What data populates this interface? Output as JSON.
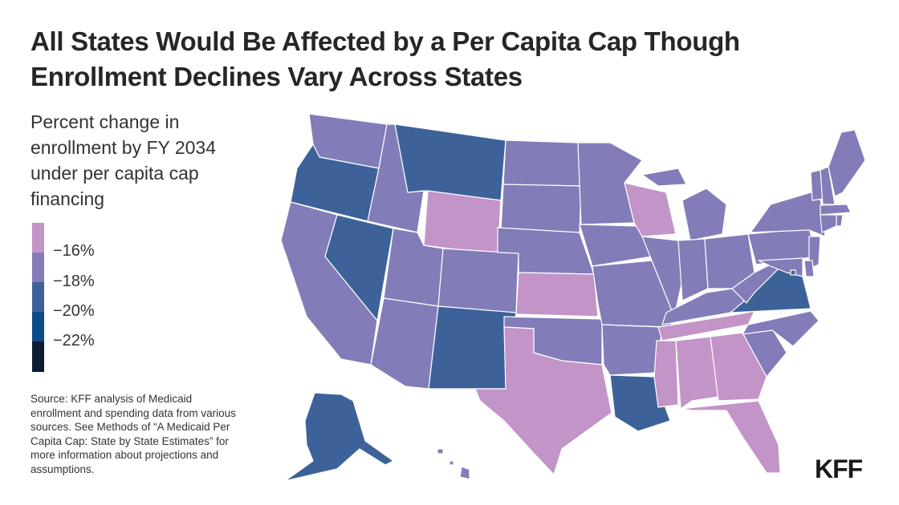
{
  "title": "All States Would Be Affected by a Per Capita Cap Though Enrollment Declines Vary Across States",
  "subtitle": "Percent change in enrollment by FY 2034 under per capita cap financing",
  "legend": {
    "bins": [
      {
        "label": "",
        "color": "#c394c7"
      },
      {
        "label": "−16%",
        "color": "#827db8"
      },
      {
        "label": "−18%",
        "color": "#3d6299"
      },
      {
        "label": "−20%",
        "color": "#0b4a88"
      },
      {
        "label": "−22%",
        "color": "#0b1c33"
      }
    ]
  },
  "source": "Source: KFF analysis of Medicaid enrollment and spending data from various sources. See Methods of “A Medicaid Per Capita Cap: State by State Estimates” for more information about projections and assumptions.",
  "logo": "KFF",
  "map_data": {
    "type": "choropleth",
    "value_bins": {
      "1": "least decline (pink)",
      "2": "middle (purple)",
      "3": "largest shown (blue)"
    },
    "states": {
      "WA": 2,
      "OR": 3,
      "CA": 2,
      "ID": 2,
      "NV": 3,
      "MT": 3,
      "WY": 1,
      "UT": 2,
      "AZ": 2,
      "CO": 2,
      "NM": 3,
      "ND": 2,
      "SD": 2,
      "NE": 2,
      "KS": 1,
      "OK": 2,
      "TX": 1,
      "MN": 2,
      "IA": 2,
      "MO": 2,
      "AR": 2,
      "LA": 3,
      "WI": 1,
      "IL": 2,
      "MI": 2,
      "IN": 2,
      "OH": 2,
      "KY": 2,
      "TN": 1,
      "MS": 1,
      "AL": 1,
      "GA": 1,
      "FL": 1,
      "SC": 2,
      "NC": 2,
      "VA": 3,
      "WV": 2,
      "PA": 2,
      "NY": 2,
      "VT": 2,
      "NH": 2,
      "ME": 2,
      "MA": 2,
      "RI": 2,
      "CT": 2,
      "NJ": 2,
      "DE": 2,
      "MD": 2,
      "DC": 3,
      "AK": 3,
      "HI": 2
    }
  }
}
